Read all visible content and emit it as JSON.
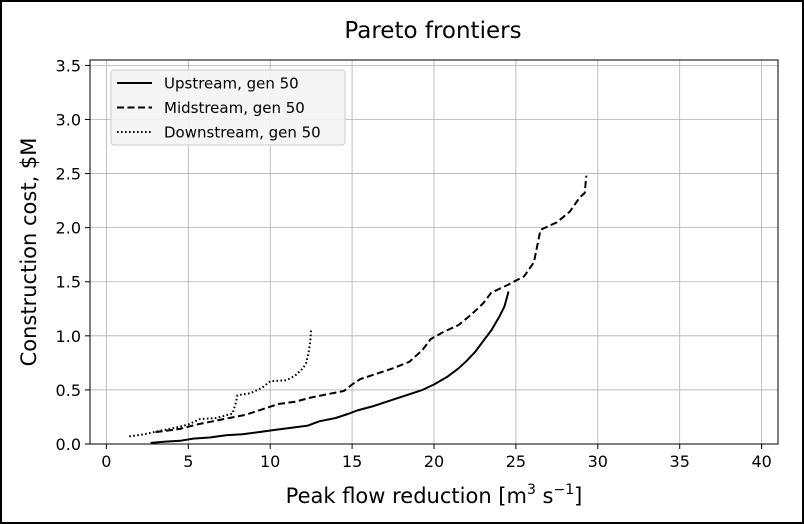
{
  "chart_data": {
    "type": "line",
    "title": "Pareto frontiers",
    "xlabel_main": "Peak flow reduction [m",
    "xlabel_sup1": "3",
    "xlabel_mid": " s",
    "xlabel_sup2": "−1",
    "xlabel_end": "]",
    "ylabel": "Construction cost, $M",
    "xlim": [
      -1,
      41
    ],
    "ylim": [
      0,
      3.55
    ],
    "x_ticks": [
      0,
      5,
      10,
      15,
      20,
      25,
      30,
      35,
      40
    ],
    "x_tick_labels": [
      "0",
      "5",
      "10",
      "15",
      "20",
      "25",
      "30",
      "35",
      "40"
    ],
    "y_ticks": [
      0,
      0.5,
      1,
      1.5,
      2,
      2.5,
      3,
      3.5
    ],
    "y_tick_labels": [
      "0.0",
      "0.5",
      "1.0",
      "1.5",
      "2.0",
      "2.5",
      "3.0",
      "3.5"
    ],
    "grid": true,
    "legend_position": "top-left",
    "series": [
      {
        "name": "Upstream, gen 50",
        "style": "solid",
        "color": "#000000",
        "points": [
          [
            2.7,
            0.01
          ],
          [
            3.5,
            0.02
          ],
          [
            4.5,
            0.03
          ],
          [
            5.3,
            0.05
          ],
          [
            6.3,
            0.06
          ],
          [
            7.3,
            0.08
          ],
          [
            8.3,
            0.09
          ],
          [
            9.3,
            0.11
          ],
          [
            10.3,
            0.13
          ],
          [
            11.3,
            0.15
          ],
          [
            12.3,
            0.17
          ],
          [
            13.0,
            0.21
          ],
          [
            14.0,
            0.24
          ],
          [
            14.8,
            0.28
          ],
          [
            15.3,
            0.31
          ],
          [
            16.3,
            0.35
          ],
          [
            17.3,
            0.4
          ],
          [
            18.3,
            0.45
          ],
          [
            19.3,
            0.5
          ],
          [
            20.0,
            0.55
          ],
          [
            20.8,
            0.62
          ],
          [
            21.5,
            0.7
          ],
          [
            22.0,
            0.77
          ],
          [
            22.5,
            0.85
          ],
          [
            23.0,
            0.95
          ],
          [
            23.5,
            1.05
          ],
          [
            24.0,
            1.18
          ],
          [
            24.3,
            1.27
          ],
          [
            24.5,
            1.38
          ],
          [
            24.55,
            1.41
          ]
        ]
      },
      {
        "name": "Midstream, gen 50",
        "style": "dashed",
        "color": "#000000",
        "points": [
          [
            3.0,
            0.11
          ],
          [
            4.5,
            0.14
          ],
          [
            5.5,
            0.18
          ],
          [
            6.5,
            0.21
          ],
          [
            7.5,
            0.24
          ],
          [
            8.5,
            0.27
          ],
          [
            9.5,
            0.32
          ],
          [
            10.5,
            0.37
          ],
          [
            11.5,
            0.39
          ],
          [
            12.5,
            0.43
          ],
          [
            13.5,
            0.46
          ],
          [
            14.5,
            0.49
          ],
          [
            15.0,
            0.55
          ],
          [
            15.5,
            0.6
          ],
          [
            16.5,
            0.65
          ],
          [
            17.5,
            0.7
          ],
          [
            18.5,
            0.76
          ],
          [
            19.3,
            0.87
          ],
          [
            19.8,
            0.97
          ],
          [
            20.5,
            1.03
          ],
          [
            21.5,
            1.1
          ],
          [
            22.3,
            1.2
          ],
          [
            23.0,
            1.3
          ],
          [
            23.5,
            1.4
          ],
          [
            24.5,
            1.47
          ],
          [
            25.5,
            1.55
          ],
          [
            26.1,
            1.68
          ],
          [
            26.5,
            1.98
          ],
          [
            27.5,
            2.05
          ],
          [
            28.3,
            2.15
          ],
          [
            28.9,
            2.28
          ],
          [
            29.2,
            2.32
          ],
          [
            29.3,
            2.48
          ]
        ]
      },
      {
        "name": "Downstream, gen 50",
        "style": "dotted",
        "color": "#000000",
        "points": [
          [
            1.4,
            0.07
          ],
          [
            2.3,
            0.09
          ],
          [
            3.2,
            0.12
          ],
          [
            4.2,
            0.15
          ],
          [
            5.0,
            0.18
          ],
          [
            5.7,
            0.23
          ],
          [
            6.7,
            0.24
          ],
          [
            7.7,
            0.28
          ],
          [
            7.9,
            0.38
          ],
          [
            8.0,
            0.45
          ],
          [
            8.8,
            0.47
          ],
          [
            9.5,
            0.52
          ],
          [
            10.0,
            0.58
          ],
          [
            11.0,
            0.59
          ],
          [
            11.5,
            0.63
          ],
          [
            12.0,
            0.7
          ],
          [
            12.2,
            0.75
          ],
          [
            12.35,
            0.85
          ],
          [
            12.45,
            0.95
          ],
          [
            12.5,
            1.06
          ]
        ]
      }
    ]
  }
}
